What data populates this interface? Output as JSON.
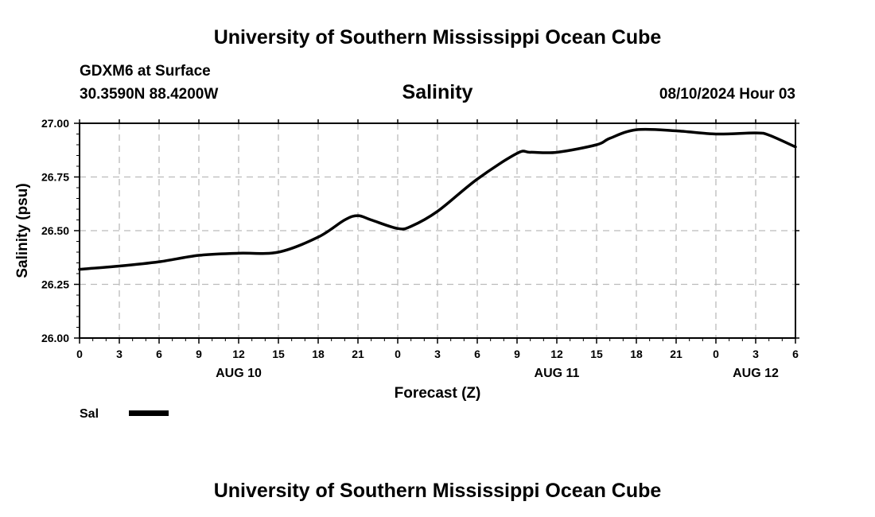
{
  "header": {
    "title": "University of Southern Mississippi Ocean Cube",
    "station": "GDXM6 at Surface",
    "coords": "30.3590N  88.4200W",
    "datetime": "08/10/2024 Hour 03"
  },
  "footer": {
    "title": "University of Southern Mississippi Ocean Cube"
  },
  "chart_data": {
    "type": "line",
    "title": "Salinity",
    "xlabel": "Forecast (Z)",
    "ylabel": "Salinity (psu)",
    "ylim": [
      26.0,
      27.0
    ],
    "xlim": [
      0,
      54
    ],
    "grid": true,
    "x_tick_labels": [
      "0",
      "3",
      "6",
      "9",
      "12",
      "15",
      "18",
      "21",
      "0",
      "3",
      "6",
      "9",
      "12",
      "15",
      "18",
      "21",
      "0",
      "3",
      "6"
    ],
    "date_labels": [
      {
        "label": "AUG 10",
        "at_hour": 12
      },
      {
        "label": "AUG 11",
        "at_hour": 36
      },
      {
        "label": "AUG 12",
        "at_hour": 51
      }
    ],
    "y_tick_labels": [
      "26.00",
      "26.25",
      "26.50",
      "26.75",
      "27.00"
    ],
    "y_ticks": [
      26.0,
      26.25,
      26.5,
      26.75,
      27.0
    ],
    "legend": {
      "placement": "bottom-left",
      "label": "Sal"
    },
    "series": [
      {
        "name": "Sal",
        "color": "#000000",
        "x": [
          0,
          3,
          6,
          9,
          12,
          15,
          18,
          20,
          21,
          22,
          24,
          25,
          27,
          30,
          33,
          34,
          36,
          39,
          40,
          42,
          45,
          48,
          51,
          52,
          54
        ],
        "values": [
          26.32,
          26.335,
          26.355,
          26.385,
          26.395,
          26.4,
          26.47,
          26.55,
          26.57,
          26.55,
          26.51,
          26.52,
          26.59,
          26.74,
          26.86,
          26.865,
          26.865,
          26.9,
          26.93,
          26.97,
          26.965,
          26.95,
          26.955,
          26.945,
          26.89
        ]
      }
    ]
  }
}
